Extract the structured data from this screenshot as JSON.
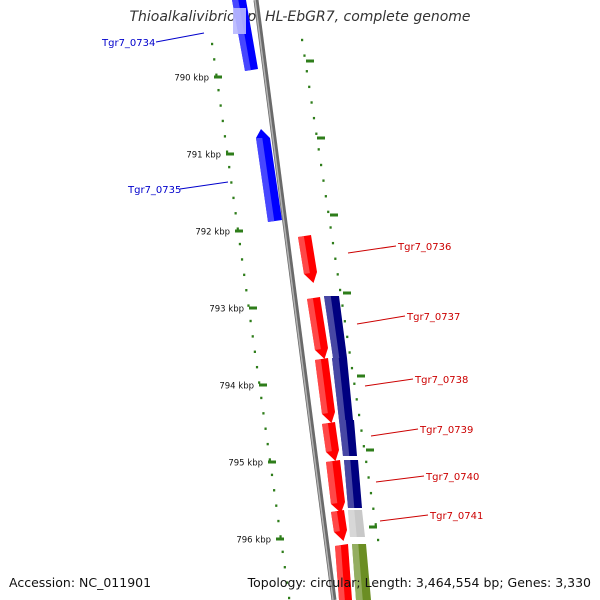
{
  "title": "Thioalkalivibrio sp. HL-EbGR7, complete genome",
  "footer": {
    "accession": "Accession: NC_011901",
    "summary": "Topology: circular; Length: 3,464,554 bp; Genes: 3,330"
  },
  "colors": {
    "backbone": "#808080",
    "tick": "#2e7d1a",
    "forward_cds": "#0000ff",
    "reverse_cds": "#ff0000",
    "dark_cds": "#000080",
    "other": "#c8c8c8",
    "olive": "#6b8e23",
    "label_blue": "#0000cc",
    "label_red": "#cc0000"
  },
  "scale": {
    "kbp_labels": [
      "790 kbp",
      "791 kbp",
      "792 kbp",
      "793 kbp",
      "794 kbp",
      "795 kbp",
      "796 kbp"
    ]
  },
  "genes": [
    {
      "label": "Tgr7_0734",
      "strand": "forward",
      "color": "blue"
    },
    {
      "label": "Tgr7_0735",
      "strand": "forward",
      "color": "blue"
    },
    {
      "label": "Tgr7_0736",
      "strand": "reverse",
      "color": "red"
    },
    {
      "label": "Tgr7_0737",
      "strand": "reverse",
      "color": "red"
    },
    {
      "label": "Tgr7_0738",
      "strand": "reverse",
      "color": "red"
    },
    {
      "label": "Tgr7_0739",
      "strand": "reverse",
      "color": "red"
    },
    {
      "label": "Tgr7_0740",
      "strand": "reverse",
      "color": "red"
    },
    {
      "label": "Tgr7_0741",
      "strand": "reverse",
      "color": "red"
    }
  ]
}
